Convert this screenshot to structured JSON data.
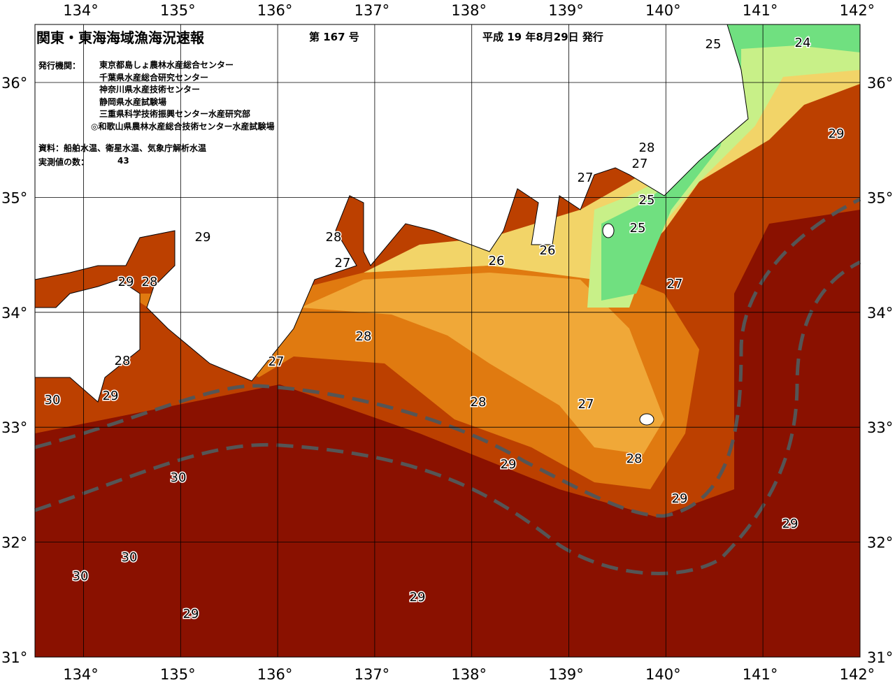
{
  "header": {
    "title": "関東・東海海域漁海況速報",
    "issue": "第 167 号",
    "date": "平成 19 年8月29日 発行"
  },
  "agencies": {
    "label": "発行機関：",
    "items": [
      "東京都島しょ農林水産総合センター",
      "千葉県水産総合研究センター",
      "神奈川県水産技術センター",
      "静岡県水産試験場",
      "三重県科学技術振興センター水産研究部",
      "◎和歌山県農林水産総合技術センター水産試験場"
    ]
  },
  "source": "資料：船舶水温、衛星水温、気象庁解析水温",
  "count": {
    "label": "実測値の数：",
    "value": "43"
  },
  "map": {
    "lon_labels": [
      "134°",
      "135°",
      "136°",
      "137°",
      "138°",
      "139°",
      "140°",
      "141°",
      "142°"
    ],
    "lat_labels": [
      "36°",
      "35°",
      "34°",
      "33°",
      "32°",
      "31°"
    ],
    "contour_labels": [
      "25",
      "24",
      "29",
      "28",
      "27",
      "27",
      "25",
      "25",
      "26",
      "26",
      "27",
      "28",
      "27",
      "29",
      "29",
      "28",
      "28",
      "27",
      "28",
      "29",
      "30",
      "28",
      "27",
      "28",
      "29",
      "29",
      "29",
      "30",
      "30",
      "30",
      "29",
      "29"
    ]
  }
}
